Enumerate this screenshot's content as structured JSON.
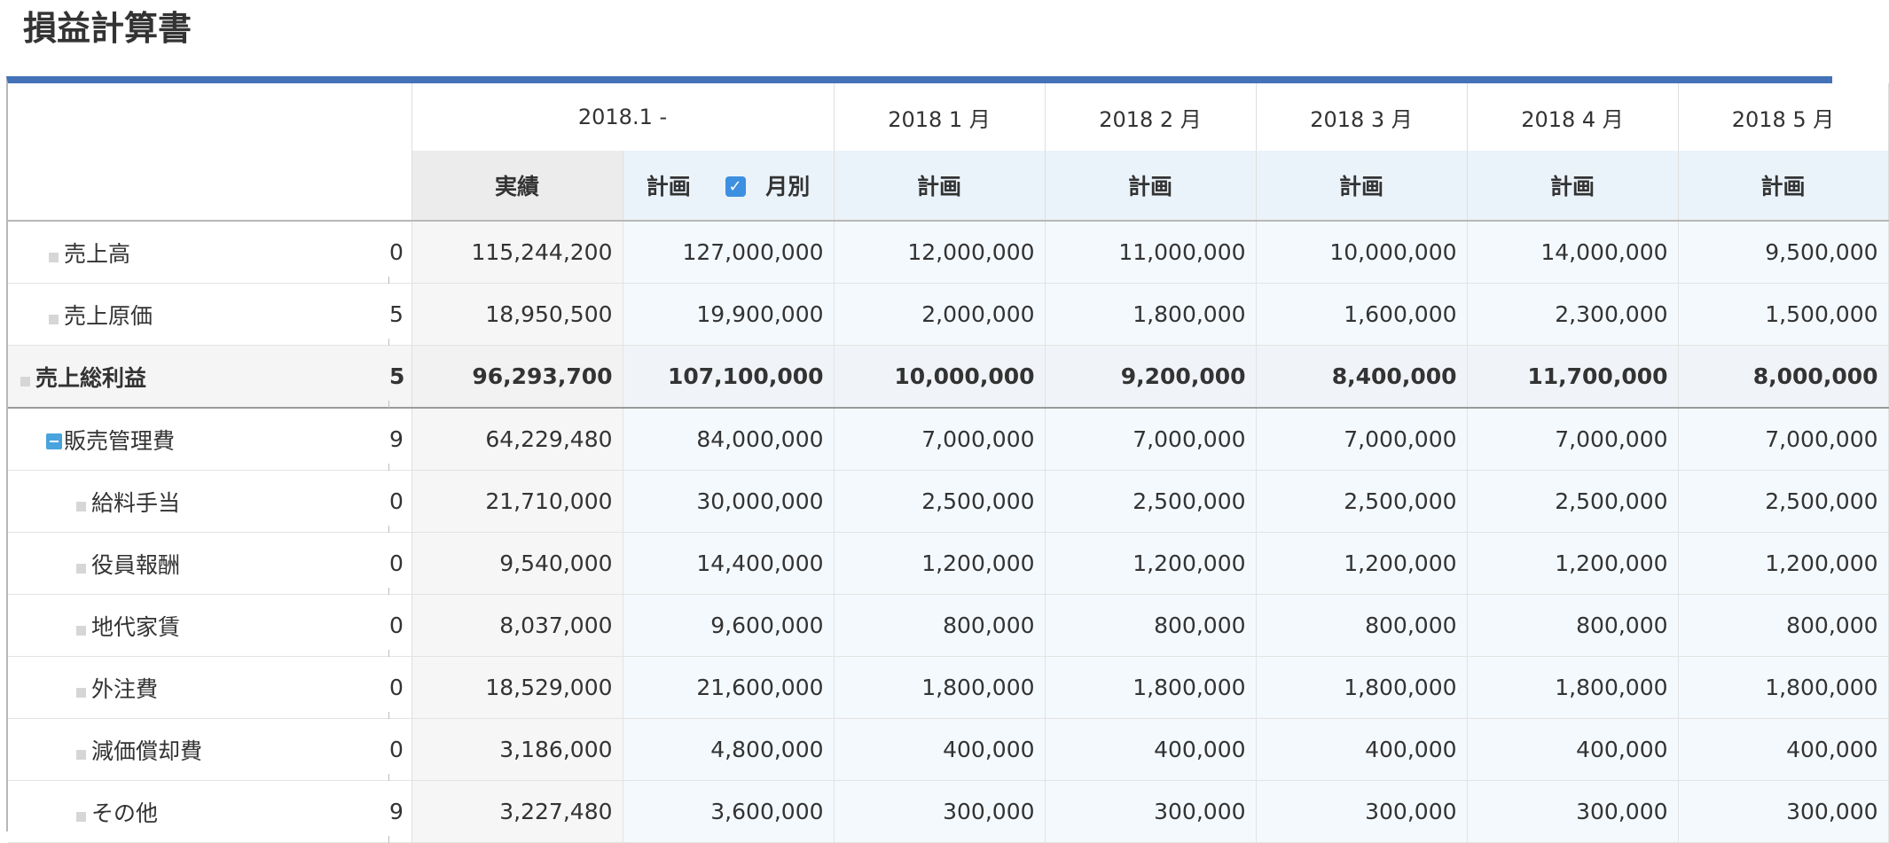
{
  "title": "損益計算書",
  "header": {
    "period": "2018.1 -",
    "months": [
      "2018 1 月",
      "2018 2 月",
      "2018 3 月",
      "2018 4 月",
      "2018 5 月"
    ],
    "actual_label": "実績",
    "plan_label": "計画",
    "monthly_label": "月別",
    "monthly_checked": "✓"
  },
  "rows": [
    {
      "label": "売上高",
      "code": "0",
      "actual": "115,244,200",
      "plan": "127,000,000",
      "months": [
        "12,000,000",
        "11,000,000",
        "10,000,000",
        "14,000,000",
        "9,500,000"
      ]
    },
    {
      "label": "売上原価",
      "code": "5",
      "actual": "18,950,500",
      "plan": "19,900,000",
      "months": [
        "2,000,000",
        "1,800,000",
        "1,600,000",
        "2,300,000",
        "1,500,000"
      ]
    },
    {
      "label": "売上総利益",
      "code": "5",
      "actual": "96,293,700",
      "plan": "107,100,000",
      "months": [
        "10,000,000",
        "9,200,000",
        "8,400,000",
        "11,700,000",
        "8,000,000"
      ]
    },
    {
      "label": "販売管理費",
      "code": "9",
      "actual": "64,229,480",
      "plan": "84,000,000",
      "months": [
        "7,000,000",
        "7,000,000",
        "7,000,000",
        "7,000,000",
        "7,000,000"
      ]
    },
    {
      "label": "給料手当",
      "code": "0",
      "actual": "21,710,000",
      "plan": "30,000,000",
      "months": [
        "2,500,000",
        "2,500,000",
        "2,500,000",
        "2,500,000",
        "2,500,000"
      ]
    },
    {
      "label": "役員報酬",
      "code": "0",
      "actual": "9,540,000",
      "plan": "14,400,000",
      "months": [
        "1,200,000",
        "1,200,000",
        "1,200,000",
        "1,200,000",
        "1,200,000"
      ]
    },
    {
      "label": "地代家賃",
      "code": "0",
      "actual": "8,037,000",
      "plan": "9,600,000",
      "months": [
        "800,000",
        "800,000",
        "800,000",
        "800,000",
        "800,000"
      ]
    },
    {
      "label": "外注費",
      "code": "0",
      "actual": "18,529,000",
      "plan": "21,600,000",
      "months": [
        "1,800,000",
        "1,800,000",
        "1,800,000",
        "1,800,000",
        "1,800,000"
      ]
    },
    {
      "label": "減価償却費",
      "code": "0",
      "actual": "3,186,000",
      "plan": "4,800,000",
      "months": [
        "400,000",
        "400,000",
        "400,000",
        "400,000",
        "400,000"
      ]
    },
    {
      "label": "その他",
      "code": "9",
      "actual": "3,227,480",
      "plan": "3,600,000",
      "months": [
        "300,000",
        "300,000",
        "300,000",
        "300,000",
        "300,000"
      ]
    }
  ]
}
